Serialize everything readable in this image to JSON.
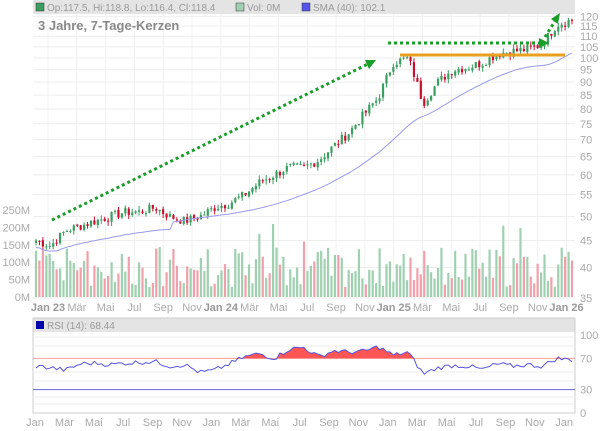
{
  "legend": {
    "ohlc": "Op:117.5, Hi:118.8, Lo:116.4, Cl:118.4",
    "vol": "Vol: 0M",
    "sma": "SMA (40): 102.1",
    "rsi": "RSI (14): 68.44"
  },
  "colors": {
    "up": "#3a9e5f",
    "down": "#c8102e",
    "vol_up": "#9fd0b0",
    "vol_down": "#f0a0aa",
    "sma": "#9999ee",
    "rsi": "#5555dd",
    "rsi_fill": "#ff5555",
    "arrow": "#1a9e2a",
    "support": "#e8a020"
  },
  "chart_data": [
    {
      "type": "candlestick",
      "title": "3 Jahre, 7-Tage-Kerzen",
      "scale": "log",
      "ylim": [
        35,
        125
      ],
      "yticks": [
        120,
        115,
        110,
        105,
        100,
        95,
        90,
        85,
        80,
        75,
        70,
        65,
        60,
        55,
        50,
        45,
        40,
        35
      ],
      "volume_ticks": [
        "250M",
        "200M",
        "150M",
        "100M",
        "50M",
        "0M"
      ],
      "xticks": [
        {
          "l": "Jan 23",
          "b": true
        },
        {
          "l": "Mär"
        },
        {
          "l": "Mai"
        },
        {
          "l": "Jul"
        },
        {
          "l": "Sep"
        },
        {
          "l": "Nov"
        },
        {
          "l": "Jan 24",
          "b": true
        },
        {
          "l": "Mär"
        },
        {
          "l": "Mai"
        },
        {
          "l": "Jul"
        },
        {
          "l": "Sep"
        },
        {
          "l": "Nov"
        },
        {
          "l": "Jan 25",
          "b": true
        },
        {
          "l": "Mär"
        },
        {
          "l": "Mai"
        },
        {
          "l": "Jul"
        },
        {
          "l": "Sep"
        },
        {
          "l": "Nov"
        },
        {
          "l": "Jan 26",
          "b": true
        }
      ],
      "monthly_close": [
        45,
        44,
        47,
        48,
        49,
        50,
        51,
        51,
        52,
        50,
        49,
        50,
        52,
        53,
        55,
        58,
        60,
        62,
        62,
        64,
        68,
        72,
        78,
        84,
        98,
        100,
        82,
        90,
        95,
        96,
        98,
        102,
        103,
        104,
        106,
        116,
        118
      ],
      "sma_period": 40,
      "support_level": 105
    },
    {
      "type": "line",
      "title": "RSI (14)",
      "ylim": [
        0,
        100
      ],
      "yticks": [
        "100",
        "70",
        "30",
        "0"
      ],
      "thresholds": [
        70,
        30
      ],
      "xticks": [
        "Jan",
        "Mär",
        "Mai",
        "Jul",
        "Sep",
        "Nov",
        "Jan",
        "Mär",
        "Mai",
        "Jul",
        "Sep",
        "Nov",
        "Jan",
        "Mär",
        "Mai",
        "Jul",
        "Sep",
        "Nov",
        "Jan"
      ],
      "monthly_rsi": [
        60,
        58,
        55,
        63,
        64,
        62,
        64,
        65,
        66,
        60,
        62,
        52,
        55,
        63,
        72,
        76,
        70,
        82,
        84,
        72,
        80,
        78,
        79,
        85,
        74,
        78,
        50,
        58,
        61,
        60,
        56,
        63,
        60,
        62,
        60,
        70,
        68
      ]
    }
  ]
}
